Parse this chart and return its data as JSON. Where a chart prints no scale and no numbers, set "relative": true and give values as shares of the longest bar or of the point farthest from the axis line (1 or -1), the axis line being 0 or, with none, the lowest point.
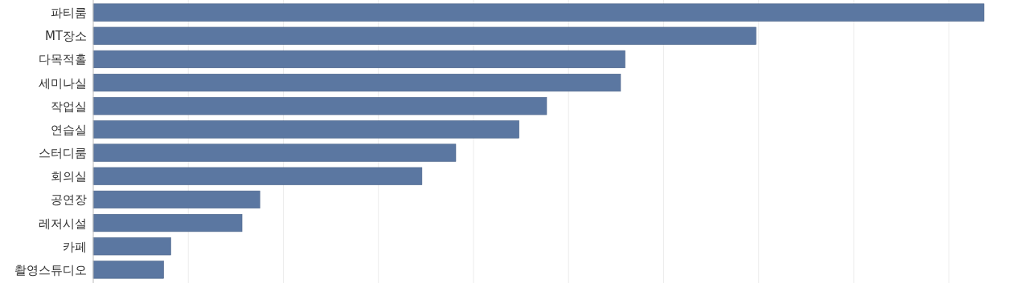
{
  "chart_data": {
    "type": "bar",
    "orientation": "horizontal",
    "relative": true,
    "grid": "x",
    "color": "#5b77a1",
    "categories": [
      "파티룸",
      "MT장소",
      "다목적홀",
      "세미나실",
      "작업실",
      "연습실",
      "스터디룸",
      "회의실",
      "공연장",
      "레저시설",
      "카페",
      "촬영스튜디오"
    ],
    "values": [
      1,
      0.744,
      0.597,
      0.592,
      0.509,
      0.478,
      0.407,
      0.369,
      0.187,
      0.167,
      0.087,
      0.079
    ]
  }
}
